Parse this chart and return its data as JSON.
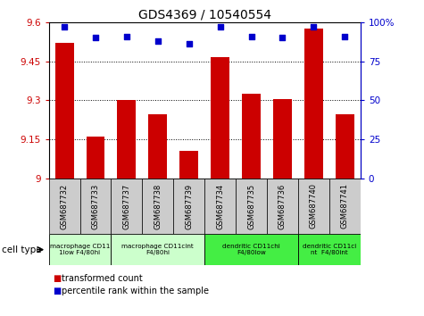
{
  "title": "GDS4369 / 10540554",
  "samples": [
    "GSM687732",
    "GSM687733",
    "GSM687737",
    "GSM687738",
    "GSM687739",
    "GSM687734",
    "GSM687735",
    "GSM687736",
    "GSM687740",
    "GSM687741"
  ],
  "red_values": [
    9.52,
    9.16,
    9.3,
    9.245,
    9.105,
    9.465,
    9.325,
    9.305,
    9.575,
    9.245
  ],
  "blue_values": [
    97,
    90,
    91,
    88,
    86,
    97,
    91,
    90,
    97,
    91
  ],
  "ylim_left": [
    9.0,
    9.6
  ],
  "ylim_right": [
    0,
    100
  ],
  "yticks_left": [
    9.0,
    9.15,
    9.3,
    9.45,
    9.6
  ],
  "yticks_right": [
    0,
    25,
    50,
    75,
    100
  ],
  "ytick_labels_left": [
    "9",
    "9.15",
    "9.3",
    "9.45",
    "9.6"
  ],
  "ytick_labels_right": [
    "0",
    "25",
    "50",
    "75",
    "100%"
  ],
  "hlines": [
    9.15,
    9.3,
    9.45
  ],
  "legend_red": "transformed count",
  "legend_blue": "percentile rank within the sample",
  "cell_type_label": "cell type",
  "bar_color": "#cc0000",
  "dot_color": "#0000cc",
  "tick_bg_color": "#cccccc",
  "group_configs": [
    {
      "label": "macrophage CD11\n1low F4/80hi",
      "cols": [
        0,
        1
      ],
      "color": "#ccffcc"
    },
    {
      "label": "macrophage CD11cint\nF4/80hi",
      "cols": [
        2,
        3,
        4
      ],
      "color": "#ccffcc"
    },
    {
      "label": "dendritic CD11chi\nF4/80low",
      "cols": [
        5,
        6,
        7
      ],
      "color": "#44ee44"
    },
    {
      "label": "dendritic CD11ci\nnt  F4/80int",
      "cols": [
        8,
        9
      ],
      "color": "#44ee44"
    }
  ]
}
